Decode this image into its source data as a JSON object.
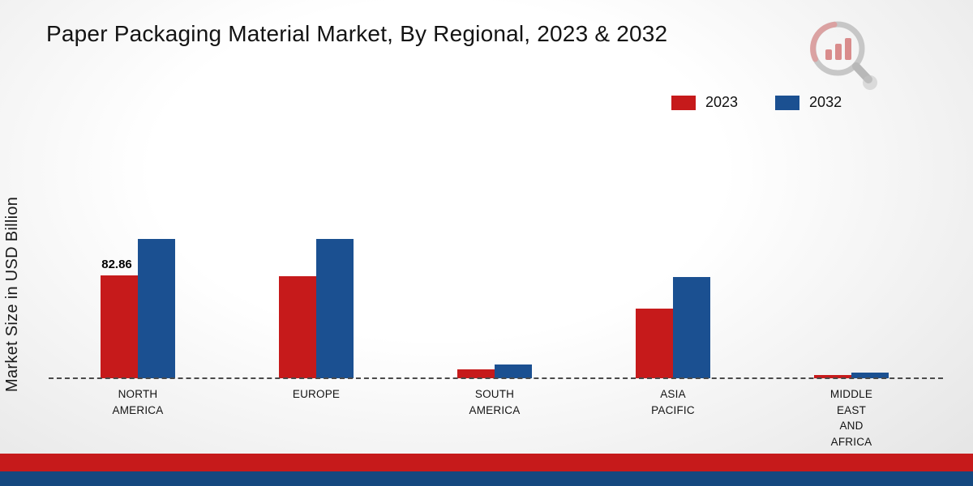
{
  "title": "Paper Packaging Material Market, By Regional, 2023 & 2032",
  "y_axis_label": "Market Size in USD Billion",
  "legend": [
    {
      "label": "2023",
      "color": "#c61a1b"
    },
    {
      "label": "2032",
      "color": "#1b5091"
    }
  ],
  "colors": {
    "red": "#c61a1b",
    "blue": "#1b5091",
    "footer_red": "#c61a1b",
    "footer_navy": "#15487f",
    "baseline": "#4a4a4a"
  },
  "chart_data": {
    "type": "bar",
    "title": "Paper Packaging Material Market, By Regional, 2023 & 2032",
    "ylabel": "Market Size in USD Billion",
    "ylim": [
      0,
      120
    ],
    "grid": false,
    "legend_position": "top-right",
    "categories": [
      "NORTH AMERICA",
      "EUROPE",
      "SOUTH AMERICA",
      "ASIA PACIFIC",
      "MIDDLE EAST AND AFRICA"
    ],
    "category_lines": [
      [
        "NORTH",
        "AMERICA"
      ],
      [
        "EUROPE"
      ],
      [
        "SOUTH",
        "AMERICA"
      ],
      [
        "ASIA",
        "PACIFIC"
      ],
      [
        "MIDDLE",
        "EAST",
        "AND",
        "AFRICA"
      ]
    ],
    "series": [
      {
        "name": "2023",
        "color": "#c61a1b",
        "values": [
          82.86,
          82.3,
          7.2,
          56.5,
          2.8
        ]
      },
      {
        "name": "2032",
        "color": "#1b5091",
        "values": [
          112.4,
          112.4,
          11.2,
          81.5,
          4.9
        ]
      }
    ],
    "data_labels": [
      {
        "series_index": 0,
        "category_index": 0,
        "text": "82.86"
      }
    ]
  }
}
